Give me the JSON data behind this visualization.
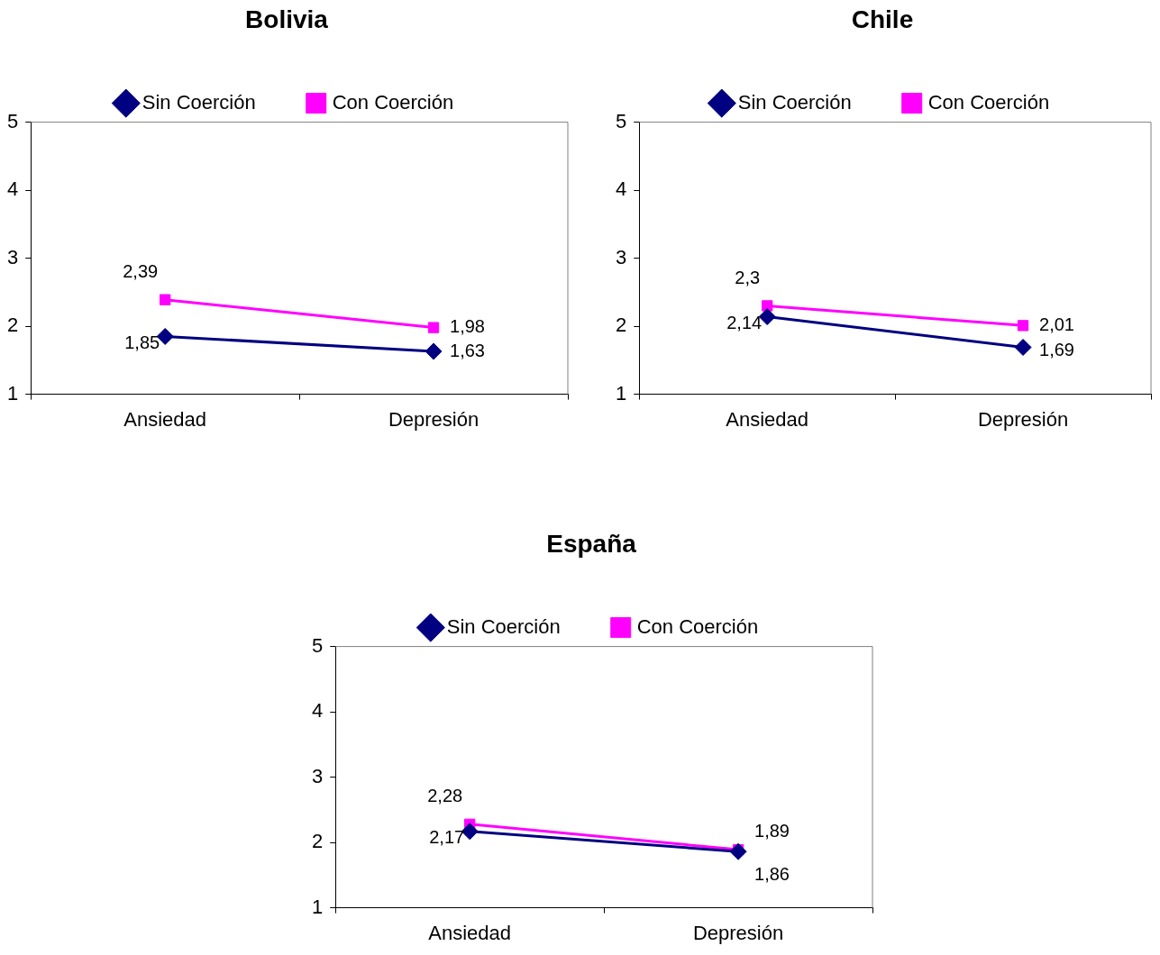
{
  "chart_data": [
    {
      "type": "line",
      "title": "Bolivia",
      "categories": [
        "Ansiedad",
        "Depresión"
      ],
      "ylim": [
        1,
        5
      ],
      "yticks": [
        1,
        2,
        3,
        4,
        5
      ],
      "grid": false,
      "legend": "top",
      "series": [
        {
          "name": "Sin Coerción",
          "color": "#000080",
          "marker": "diamond",
          "values": [
            1.85,
            1.63
          ],
          "value_labels": [
            "1,85",
            "1,63"
          ]
        },
        {
          "name": "Con Coerción",
          "color": "#ff00ff",
          "marker": "square",
          "values": [
            2.39,
            1.98
          ],
          "value_labels": [
            "2,39",
            "1,98"
          ]
        }
      ]
    },
    {
      "type": "line",
      "title": "Chile",
      "categories": [
        "Ansiedad",
        "Depresión"
      ],
      "ylim": [
        1,
        5
      ],
      "yticks": [
        1,
        2,
        3,
        4,
        5
      ],
      "grid": false,
      "legend": "top",
      "series": [
        {
          "name": "Sin Coerción",
          "color": "#000080",
          "marker": "diamond",
          "values": [
            2.14,
            1.69
          ],
          "value_labels": [
            "2,14",
            "1,69"
          ]
        },
        {
          "name": "Con Coerción",
          "color": "#ff00ff",
          "marker": "square",
          "values": [
            2.3,
            2.01
          ],
          "value_labels": [
            "2,3",
            "2,01"
          ]
        }
      ]
    },
    {
      "type": "line",
      "title": "España",
      "categories": [
        "Ansiedad",
        "Depresión"
      ],
      "ylim": [
        1,
        5
      ],
      "yticks": [
        1,
        2,
        3,
        4,
        5
      ],
      "grid": false,
      "legend": "top",
      "series": [
        {
          "name": "Sin Coerción",
          "color": "#000080",
          "marker": "diamond",
          "values": [
            2.17,
            1.86
          ],
          "value_labels": [
            "2,17",
            "1,86"
          ]
        },
        {
          "name": "Con Coerción",
          "color": "#ff00ff",
          "marker": "square",
          "values": [
            2.28,
            1.89
          ],
          "value_labels": [
            "2,28",
            "1,89"
          ]
        }
      ]
    }
  ]
}
